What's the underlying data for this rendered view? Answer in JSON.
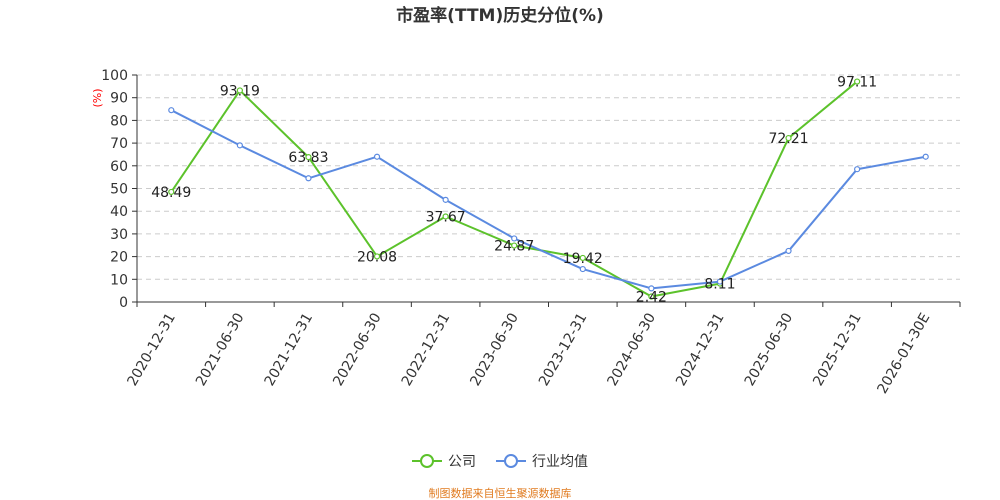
{
  "chart_data": {
    "type": "line",
    "title": "市盈率(TTM)历史分位(%)",
    "ylabel": "(%)",
    "xlabel": "",
    "ylim": [
      0,
      100
    ],
    "yticks": [
      "0",
      "10",
      "20",
      "30",
      "40",
      "50",
      "60",
      "70",
      "80",
      "90",
      "100"
    ],
    "grid": true,
    "legend_position": "bottom",
    "categories": [
      "2020-12-31",
      "2021-06-30",
      "2021-12-31",
      "2022-06-30",
      "2022-12-31",
      "2023-06-30",
      "2023-12-31",
      "2024-06-30",
      "2024-12-31",
      "2025-06-30",
      "2025-12-31",
      "2026-01-30E"
    ],
    "series": [
      {
        "name": "公司",
        "color": "#5cc22b",
        "values": [
          48.49,
          93.19,
          63.83,
          20.08,
          37.67,
          24.87,
          19.42,
          2.42,
          8.11,
          72.21,
          97.11,
          null
        ],
        "labels": [
          "48.49",
          "93.19",
          "63.83",
          "20.08",
          "37.67",
          "24.87",
          "19.42",
          "2.42",
          "8.11",
          "72.21",
          "97.11",
          ""
        ]
      },
      {
        "name": "行业均值",
        "color": "#5b8ae0",
        "values": [
          84.5,
          69.0,
          54.5,
          64.0,
          45.0,
          28.0,
          14.5,
          6.0,
          9.0,
          22.5,
          58.5,
          64.0
        ],
        "labels": []
      }
    ],
    "source": "制图数据来自恒生聚源数据库"
  }
}
